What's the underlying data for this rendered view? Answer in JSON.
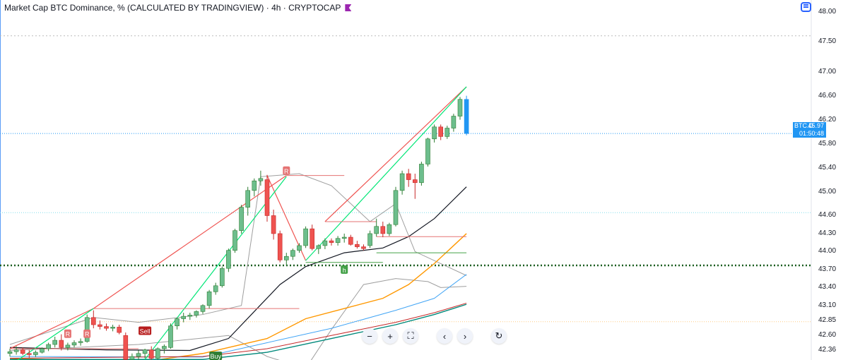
{
  "title": {
    "text": "Market Cap BTC Dominance, % (CALCULATED BY TRADINGVIEW) · 4h · CRYPTOCAP"
  },
  "price_label": {
    "symbol": "BTC.D",
    "value": "45.97",
    "countdown": "01:50:48",
    "color": "#2196f3"
  },
  "nav": {
    "zoom_out": "−",
    "zoom_in": "+",
    "reset": "⛶",
    "prev": "‹",
    "next": "›",
    "refresh": "↻"
  },
  "colors": {
    "up": "#26a69a",
    "up_fill": "#6dbe8d",
    "down": "#ef5350",
    "blue": "#2196f3",
    "orange": "#ff9800",
    "green_line": "#00e676",
    "dark_green": "#1b5e20"
  },
  "chart_data": {
    "type": "candlestick",
    "timeframe": "4h",
    "ylim": [
      42.25,
      48.08
    ],
    "yticks": [
      "48.00",
      "47.50",
      "47.00",
      "46.60",
      "46.20",
      "45.80",
      "45.40",
      "45.00",
      "44.60",
      "44.30",
      "44.00",
      "43.70",
      "43.40",
      "43.10",
      "42.85",
      "42.60",
      "42.36"
    ],
    "current_price": 45.97,
    "candles": [
      [
        42.3,
        42.38,
        42.25,
        42.33
      ],
      [
        42.33,
        42.42,
        42.28,
        42.36
      ],
      [
        42.36,
        42.4,
        42.27,
        42.3
      ],
      [
        42.3,
        42.36,
        42.22,
        42.28
      ],
      [
        42.28,
        42.35,
        42.24,
        42.32
      ],
      [
        42.32,
        42.4,
        42.3,
        42.38
      ],
      [
        42.38,
        42.48,
        42.34,
        42.45
      ],
      [
        42.45,
        42.58,
        42.4,
        42.52
      ],
      [
        42.52,
        42.62,
        42.35,
        42.4
      ],
      [
        42.4,
        42.48,
        42.35,
        42.44
      ],
      [
        42.44,
        42.52,
        42.4,
        42.48
      ],
      [
        42.48,
        42.55,
        42.43,
        42.5
      ],
      [
        42.5,
        42.95,
        42.48,
        42.9
      ],
      [
        42.9,
        43.02,
        42.72,
        42.78
      ],
      [
        42.78,
        42.85,
        42.7,
        42.75
      ],
      [
        42.75,
        42.8,
        42.68,
        42.72
      ],
      [
        42.72,
        42.78,
        42.67,
        42.74
      ],
      [
        42.74,
        42.78,
        42.62,
        42.65
      ],
      [
        42.6,
        42.65,
        42.12,
        42.2
      ],
      [
        42.2,
        42.3,
        42.1,
        42.25
      ],
      [
        42.25,
        42.35,
        42.2,
        42.3
      ],
      [
        42.3,
        42.38,
        42.22,
        42.36
      ],
      [
        42.36,
        42.42,
        42.18,
        42.22
      ],
      [
        42.22,
        42.4,
        42.2,
        42.38
      ],
      [
        42.38,
        42.45,
        42.3,
        42.42
      ],
      [
        42.4,
        42.8,
        42.38,
        42.76
      ],
      [
        42.76,
        42.9,
        42.7,
        42.88
      ],
      [
        42.88,
        42.98,
        42.82,
        42.92
      ],
      [
        42.92,
        42.98,
        42.86,
        42.94
      ],
      [
        42.94,
        43.02,
        42.9,
        43.0
      ],
      [
        43.0,
        43.12,
        42.96,
        43.1
      ],
      [
        43.1,
        43.36,
        43.05,
        43.33
      ],
      [
        43.33,
        43.48,
        43.28,
        43.43
      ],
      [
        43.43,
        43.75,
        43.4,
        43.72
      ],
      [
        43.72,
        44.05,
        43.66,
        44.02
      ],
      [
        44.02,
        44.38,
        43.98,
        44.35
      ],
      [
        44.35,
        44.78,
        44.3,
        44.74
      ],
      [
        44.74,
        45.08,
        44.6,
        45.02
      ],
      [
        45.02,
        45.22,
        44.92,
        45.18
      ],
      [
        45.18,
        45.35,
        45.1,
        45.22
      ],
      [
        45.2,
        45.28,
        44.5,
        44.6
      ],
      [
        44.6,
        44.7,
        44.2,
        44.3
      ],
      [
        44.3,
        44.35,
        43.82,
        43.86
      ],
      [
        43.86,
        43.98,
        43.76,
        43.92
      ],
      [
        43.92,
        44.05,
        43.86,
        44.02
      ],
      [
        44.02,
        44.14,
        43.98,
        44.1
      ],
      [
        44.1,
        44.42,
        44.06,
        44.38
      ],
      [
        44.38,
        44.45,
        44.02,
        44.05
      ],
      [
        44.05,
        44.12,
        43.96,
        44.1
      ],
      [
        44.1,
        44.22,
        44.04,
        44.18
      ],
      [
        44.18,
        44.22,
        44.1,
        44.15
      ],
      [
        44.15,
        44.26,
        44.1,
        44.22
      ],
      [
        44.22,
        44.3,
        44.15,
        44.24
      ],
      [
        44.24,
        44.28,
        44.1,
        44.12
      ],
      [
        44.12,
        44.18,
        44.05,
        44.08
      ],
      [
        44.08,
        44.12,
        44.02,
        44.05
      ],
      [
        44.1,
        44.35,
        44.06,
        44.3
      ],
      [
        44.3,
        44.55,
        44.25,
        44.42
      ],
      [
        44.42,
        44.5,
        44.24,
        44.3
      ],
      [
        44.3,
        44.48,
        44.26,
        44.45
      ],
      [
        44.45,
        45.08,
        44.42,
        45.02
      ],
      [
        45.02,
        45.35,
        44.95,
        45.3
      ],
      [
        45.3,
        45.38,
        45.08,
        45.2
      ],
      [
        45.2,
        45.3,
        44.88,
        45.15
      ],
      [
        45.15,
        45.5,
        45.1,
        45.46
      ],
      [
        45.46,
        45.9,
        45.42,
        45.88
      ],
      [
        45.88,
        46.12,
        45.82,
        46.08
      ],
      [
        46.08,
        46.12,
        45.86,
        45.92
      ],
      [
        45.92,
        46.1,
        45.88,
        46.06
      ],
      [
        46.06,
        46.3,
        46.0,
        46.26
      ],
      [
        46.26,
        46.58,
        46.2,
        46.54
      ],
      [
        46.54,
        46.6,
        45.94,
        45.97
      ]
    ],
    "annotations": [
      "R",
      "R",
      "R",
      "Sell",
      "Buy",
      "h"
    ]
  }
}
